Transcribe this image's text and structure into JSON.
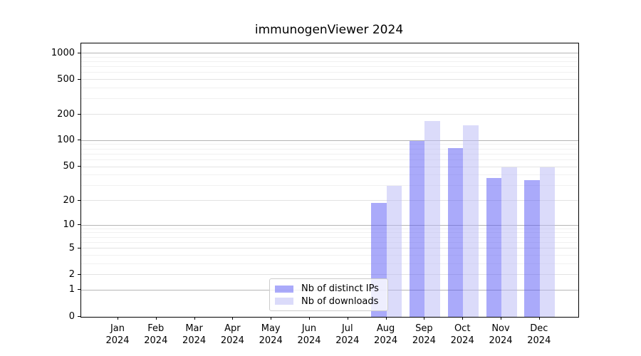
{
  "title": "immunogenViewer 2024",
  "colors": {
    "distinct_ips": "rgba(85,85,245,0.5)",
    "downloads": "rgba(183,183,245,0.5)",
    "grid_decade": "#b5b5b5",
    "grid_mid": "#e3e3e3",
    "grid_minor": "#f1f1f1"
  },
  "legend": {
    "items": [
      {
        "label": "Nb of distinct IPs",
        "series": "distinct_ips"
      },
      {
        "label": "Nb of downloads",
        "series": "downloads"
      }
    ]
  },
  "chart_data": {
    "type": "bar",
    "title": "immunogenViewer 2024",
    "categories": [
      "Jan 2024",
      "Feb 2024",
      "Mar 2024",
      "Apr 2024",
      "May 2024",
      "Jun 2024",
      "Jul 2024",
      "Aug 2024",
      "Sep 2024",
      "Oct 2024",
      "Nov 2024",
      "Dec 2024"
    ],
    "series": [
      {
        "name": "Nb of distinct IPs",
        "values": [
          0,
          0,
          0,
          0,
          0,
          0,
          0,
          19,
          100,
          82,
          37,
          35
        ]
      },
      {
        "name": "Nb of downloads",
        "values": [
          0,
          0,
          0,
          0,
          0,
          0,
          0,
          30,
          170,
          150,
          50,
          50
        ]
      }
    ],
    "yscale": "log1p",
    "ylim": [
      0,
      1300
    ],
    "y_ticks": [
      0,
      1,
      2,
      5,
      10,
      20,
      50,
      100,
      200,
      500,
      1000
    ],
    "y_minor_gridlines": [
      3,
      4,
      6,
      7,
      8,
      9,
      30,
      40,
      60,
      70,
      80,
      90,
      300,
      400,
      600,
      700,
      800,
      900
    ],
    "xlabel": "",
    "ylabel": "",
    "grid": "horizontal major+minor",
    "legend_position": "lower center inside plot"
  }
}
